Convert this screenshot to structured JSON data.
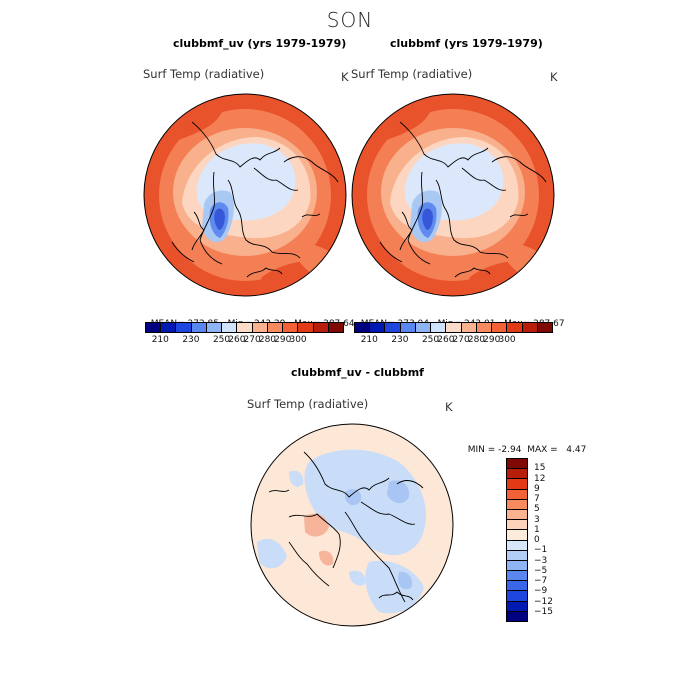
{
  "season": "SON",
  "field": "Surf Temp (radiative)",
  "unit": "K",
  "panel_left": {
    "title": "clubbmf_uv (yrs 1979-1979)",
    "mean_label": "MEAN=",
    "mean": "272.85",
    "min_label": "Min=",
    "min": "243.29",
    "max_label": "Max=",
    "max": "287.64"
  },
  "panel_right": {
    "title": "clubbmf (yrs 1979-1979)",
    "mean_label": "MEAN=",
    "mean": "273.04",
    "min_label": "Min=",
    "min": "243.01",
    "max_label": "Max=",
    "max": "287.67"
  },
  "diff": {
    "title": "clubbmf_uv - clubbmf",
    "min_label": "MIN =",
    "min": "-2.94",
    "max_label": "MAX =",
    "max": "4.47"
  },
  "abs_colorbar": {
    "ticks": [
      "210",
      "230",
      "250",
      "260",
      "270",
      "280",
      "290",
      "300"
    ],
    "colors": [
      "#000080",
      "#0019b3",
      "#1f47e0",
      "#5a86f0",
      "#8fb4f5",
      "#cfe3fb",
      "#fcdcc8",
      "#fab28f",
      "#f78a5f",
      "#f26236",
      "#e23a16",
      "#b81c0a",
      "#7f0a05"
    ]
  },
  "diff_colorbar": {
    "ticks": [
      "15",
      "12",
      "9",
      "7",
      "5",
      "3",
      "1",
      "0",
      "−1",
      "−3",
      "−5",
      "−7",
      "−9",
      "−12",
      "−15"
    ],
    "colors": [
      "#7f0a05",
      "#b81c0a",
      "#e23a16",
      "#f26236",
      "#f78a5f",
      "#fab28f",
      "#fcd4bc",
      "#fdebdc",
      "#d7e6fa",
      "#b2cdf6",
      "#8fb4f5",
      "#5a86f0",
      "#3a66ea",
      "#1f47e0",
      "#0019b3",
      "#000080"
    ]
  },
  "map_palette": {
    "warm_outer": "#e9532b",
    "warm_mid": "#f47f55",
    "warm_light": "#f9b08c",
    "warm_pale": "#fcd6c0",
    "cold_pale": "#dbe8fb",
    "cold_mid": "#aac8f4",
    "cold_deep": "#5f8bee",
    "cold_core": "#3658d8",
    "diff_bg": "#fde8d8",
    "diff_blue": "#c9dcf8",
    "diff_blue2": "#a9c5f3",
    "diff_red": "#f6b59a"
  }
}
